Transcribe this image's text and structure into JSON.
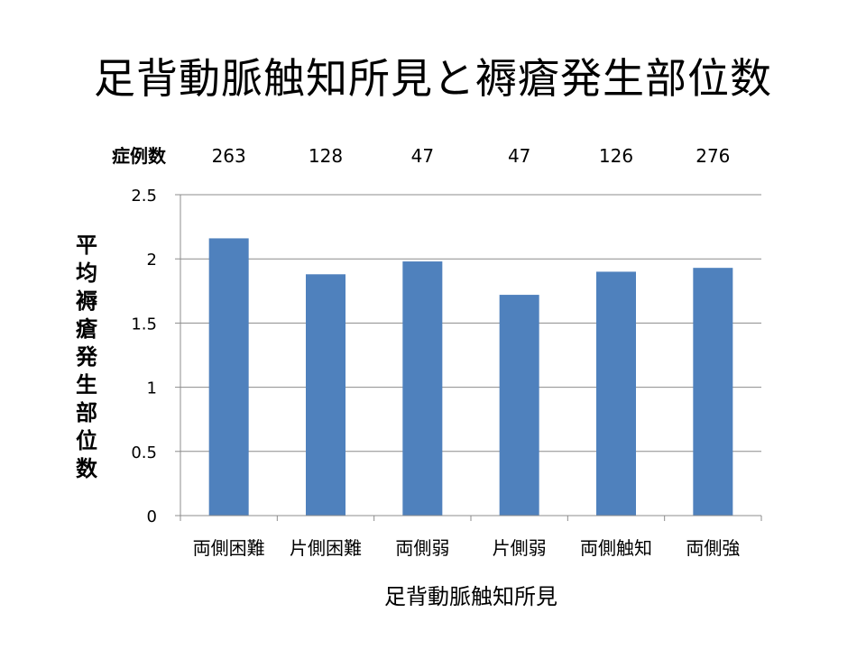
{
  "title": "足背動脈触知所見と褥瘡発生部位数",
  "chart_data": {
    "type": "bar",
    "title": "",
    "xlabel": "足背動脈触知所見",
    "ylabel": "平均褥瘡発生部位数",
    "categories": [
      "両側困難",
      "片側困難",
      "両側弱",
      "片側弱",
      "両側触知",
      "両側強"
    ],
    "values": [
      2.16,
      1.88,
      1.98,
      1.72,
      1.9,
      1.93
    ],
    "ylim": [
      0,
      2.5
    ],
    "yticks": [
      "0",
      "0.5",
      "1",
      "1.5",
      "2",
      "2.5"
    ],
    "yticks_values": [
      0,
      0.5,
      1,
      1.5,
      2,
      2.5
    ],
    "grid": true,
    "bar_color": "#4f81bd",
    "case_count_label": "症例数",
    "case_counts": [
      "263",
      "128",
      "47",
      "47",
      "126",
      "276"
    ]
  }
}
